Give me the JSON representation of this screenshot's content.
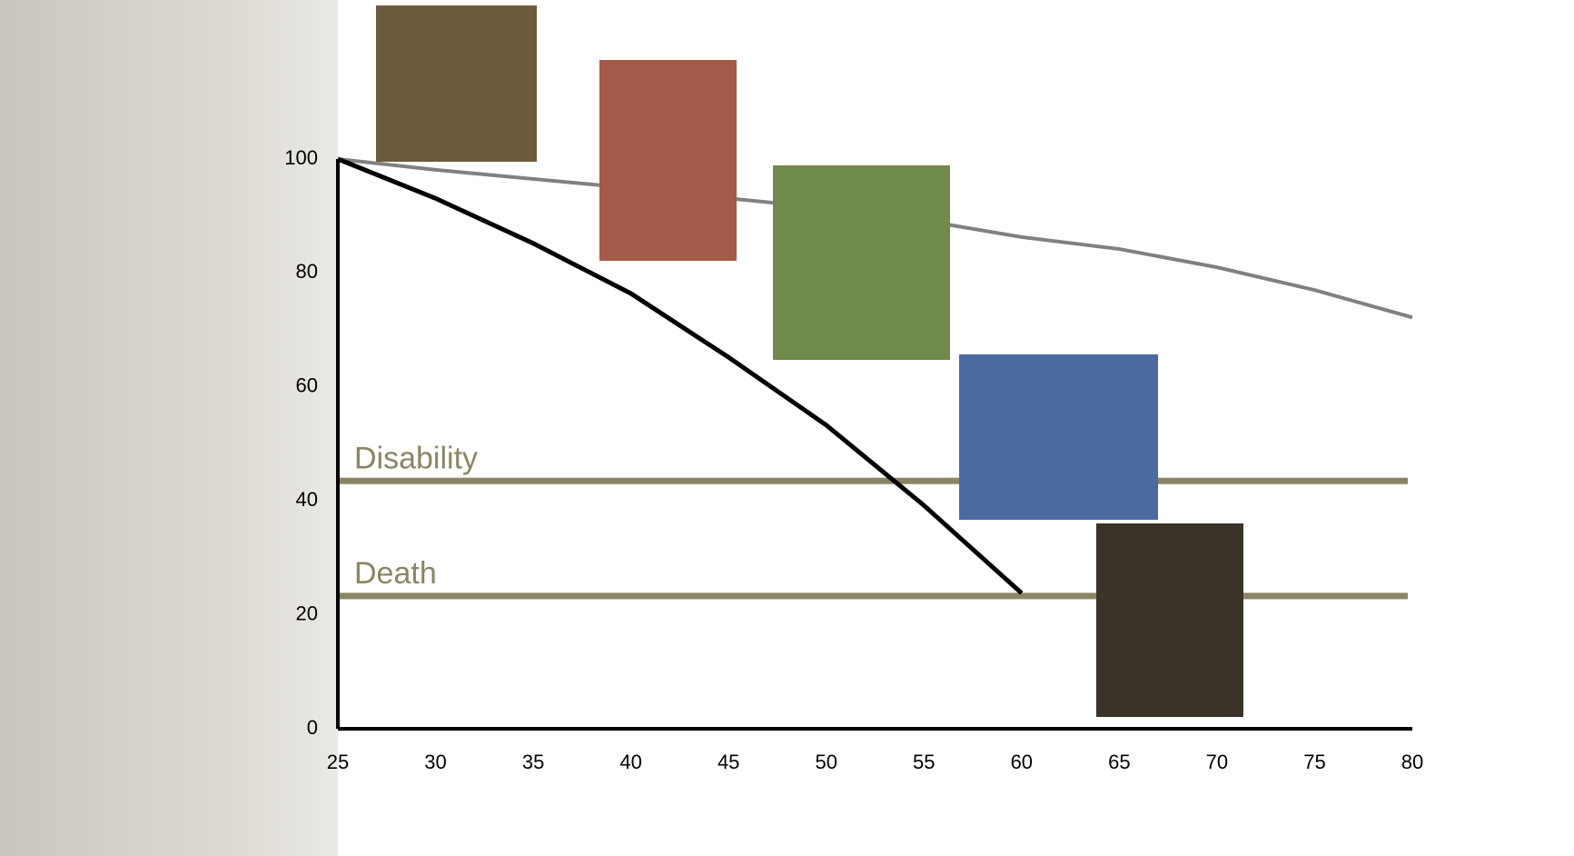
{
  "chart_data": {
    "type": "line",
    "x": [
      25,
      30,
      35,
      40,
      45,
      50,
      55,
      60,
      65,
      70,
      75,
      80
    ],
    "series": [
      {
        "color": "#808080",
        "values": [
          100,
          98.1,
          96.5,
          94.9,
          93.1,
          91.4,
          89.2,
          86.3,
          84.2,
          81,
          77,
          72.2
        ]
      },
      {
        "color": "#000000",
        "values": [
          100,
          93.1,
          85.2,
          76.4,
          65.2,
          53.3,
          39.2,
          23.8,
          null,
          null,
          null,
          null
        ]
      }
    ],
    "reference_lines": [
      {
        "label": "Disability",
        "value": 43.5,
        "color": "#8a8564"
      },
      {
        "label": "Death",
        "value": 23.3,
        "color": "#8a8564"
      }
    ],
    "xlim": [
      25,
      80
    ],
    "xticks": [
      25,
      30,
      35,
      40,
      45,
      50,
      55,
      60,
      65,
      70,
      75,
      80
    ],
    "ylim": [
      0,
      100
    ],
    "yticks": [
      0,
      20,
      40,
      60,
      80,
      100
    ]
  }
}
